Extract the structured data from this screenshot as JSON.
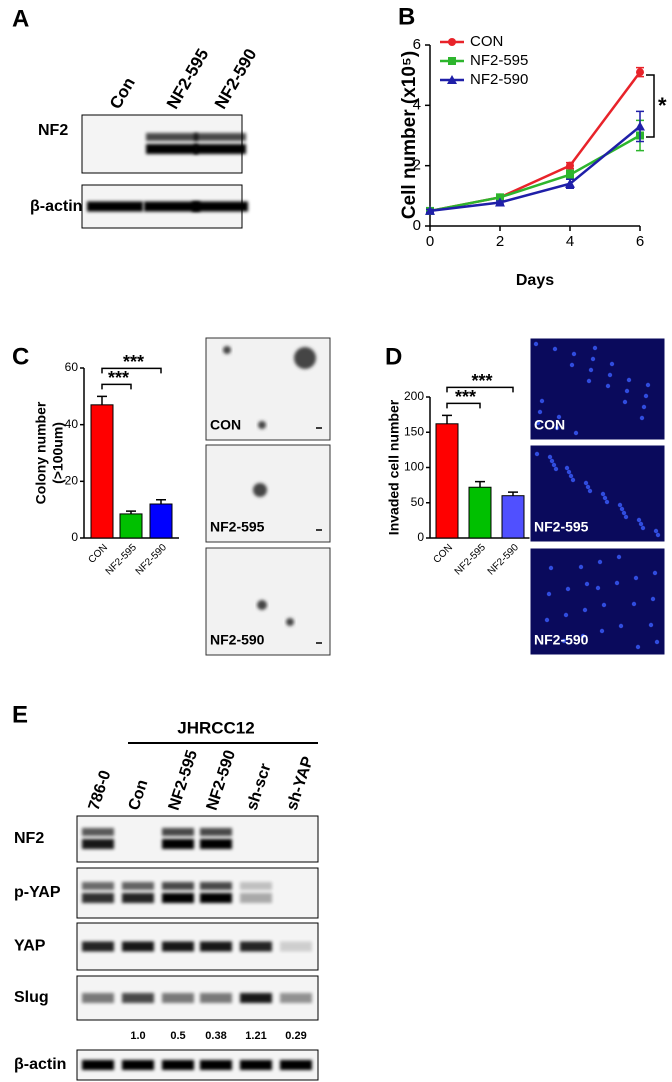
{
  "panel_labels": [
    "A",
    "B",
    "C",
    "D",
    "E"
  ],
  "blot_a": {
    "lanes": [
      "Con",
      "NF2-595",
      "NF2-590"
    ],
    "rows": [
      "NF2",
      "β-actin"
    ]
  },
  "chart_data": [
    {
      "type": "line",
      "x_label": "Days",
      "y_label": "Cell number (x10⁵)",
      "x": [
        0,
        2,
        4,
        6
      ],
      "xlim": [
        0,
        6
      ],
      "xticks": [
        0,
        2,
        4,
        6
      ],
      "ylim": [
        0,
        6
      ],
      "yticks": [
        0,
        2,
        4,
        6
      ],
      "series": [
        {
          "name": "CON",
          "color": "#e8232a",
          "marker": "circle",
          "values": [
            0.5,
            0.95,
            2.0,
            5.1
          ],
          "errors": [
            0.05,
            0.05,
            0.1,
            0.15
          ]
        },
        {
          "name": "NF2-595",
          "color": "#2db52d",
          "marker": "square",
          "values": [
            0.5,
            0.95,
            1.7,
            3.0
          ],
          "errors": [
            0.05,
            0.05,
            0.15,
            0.5
          ]
        },
        {
          "name": "NF2-590",
          "color": "#1f1fa8",
          "marker": "triangle",
          "values": [
            0.5,
            0.78,
            1.4,
            3.3
          ],
          "errors": [
            0.05,
            0.05,
            0.15,
            0.5
          ]
        }
      ],
      "annotation": "*"
    },
    {
      "type": "bar",
      "y_label": [
        "Colony number",
        "(>100um)"
      ],
      "categories": [
        "CON",
        "NF2-595",
        "NF2-590"
      ],
      "values": [
        47,
        8.5,
        12
      ],
      "errors": [
        3,
        1,
        1.5
      ],
      "colors": [
        "#ff0000",
        "#00c000",
        "#0000ff"
      ],
      "ylim": [
        0,
        60
      ],
      "yticks": [
        0,
        20,
        40,
        60
      ],
      "annotations": [
        "***",
        "***"
      ],
      "images": [
        "CON",
        "NF2-595",
        "NF2-590"
      ]
    },
    {
      "type": "bar",
      "y_label": [
        "Invaded cell number"
      ],
      "categories": [
        "CON",
        "NF2-595",
        "NF2-590"
      ],
      "values": [
        162,
        72,
        60
      ],
      "errors": [
        12,
        8,
        5
      ],
      "colors": [
        "#ff0000",
        "#00c000",
        "#5050ff"
      ],
      "ylim": [
        0,
        200
      ],
      "yticks": [
        0,
        50,
        100,
        150,
        200
      ],
      "annotations": [
        "***",
        "***"
      ],
      "images": [
        "CON",
        "NF2-595",
        "NF2-590"
      ]
    }
  ],
  "blot_e": {
    "group": "JHRCC12",
    "lanes": [
      "786-0",
      "Con",
      "NF2-595",
      "NF2-590",
      "sh-scr",
      "sh-YAP"
    ],
    "rows": [
      "NF2",
      "p-YAP",
      "YAP",
      "Slug",
      "β-actin"
    ],
    "slug_quant": [
      "1.0",
      "0.5",
      "0.38",
      "1.21",
      "0.29"
    ]
  }
}
